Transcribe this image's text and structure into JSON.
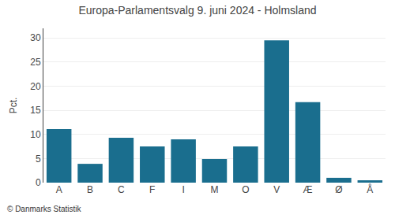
{
  "chart_data": {
    "type": "bar",
    "title": "Europa-Parlamentsvalg 9. juni 2024 - Holmsland",
    "ylabel": "Pct.",
    "annotations": [
      "© Danmarks Statistik"
    ],
    "categories": [
      "A",
      "B",
      "C",
      "F",
      "I",
      "M",
      "O",
      "V",
      "Æ",
      "Ø",
      "Å"
    ],
    "values": [
      11.1,
      3.9,
      9.3,
      7.5,
      9.0,
      4.9,
      7.5,
      29.5,
      16.7,
      1.0,
      0.5
    ],
    "color": "#1a6e8e",
    "ylim": [
      0,
      32
    ],
    "yticks": [
      0,
      5,
      10,
      15,
      20,
      25,
      30
    ],
    "grid": true
  }
}
